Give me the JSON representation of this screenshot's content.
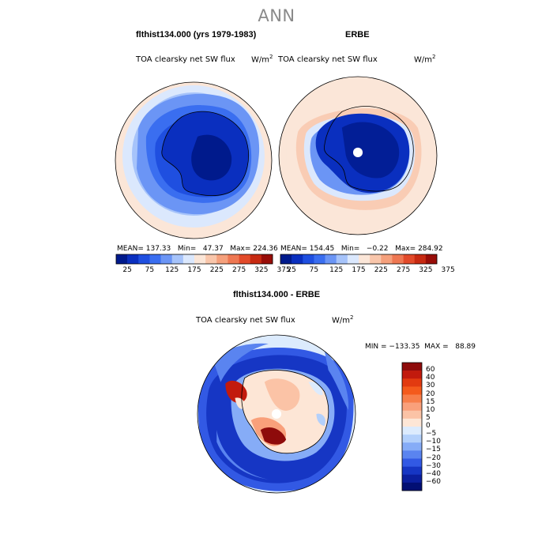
{
  "title": "ANN",
  "panels": [
    {
      "title": "flthist134.000 (yrs 1979-1983)",
      "variable": "TOA clearsky net SW flux",
      "units_base": "W/m",
      "units_exp": "2",
      "stats": "MEAN= 137.33   Min=   47.37   Max= 224.36"
    },
    {
      "title": "ERBE",
      "variable": "TOA clearsky net SW flux",
      "units_base": "W/m",
      "units_exp": "2",
      "stats": "MEAN= 154.45   Min=   −0.22   Max= 284.92"
    }
  ],
  "colorbar": {
    "ticks": [
      "25",
      "75",
      "125",
      "175",
      "225",
      "275",
      "325",
      "375"
    ],
    "colors": [
      "#001a8c",
      "#0a2fbf",
      "#1f4fe0",
      "#3a6ef0",
      "#6b95f5",
      "#a6c3fa",
      "#dbe8fd",
      "#fbe6d8",
      "#f9c6ab",
      "#f5a07c",
      "#ee7752",
      "#e24a2a",
      "#c72a12",
      "#980d08"
    ]
  },
  "diff_panel": {
    "title": "flthist134.000 - ERBE",
    "variable": "TOA clearsky net SW flux",
    "units_base": "W/m",
    "units_exp": "2",
    "stats": "MIN = −133.35  MAX =   88.89",
    "levels": [
      "60",
      "40",
      "30",
      "20",
      "15",
      "10",
      "5",
      "0",
      "−5",
      "−10",
      "−15",
      "−20",
      "−30",
      "−40",
      "−60"
    ],
    "colors": [
      "#8e0b0b",
      "#c21a0d",
      "#e23a10",
      "#f45a1c",
      "#f77e4a",
      "#f9a07b",
      "#fbc3a6",
      "#fde6d6",
      "#dcebfd",
      "#b3d0fb",
      "#86acf7",
      "#5a84f0",
      "#3259e4",
      "#1636c4",
      "#0b1f9e",
      "#020f73"
    ]
  }
}
